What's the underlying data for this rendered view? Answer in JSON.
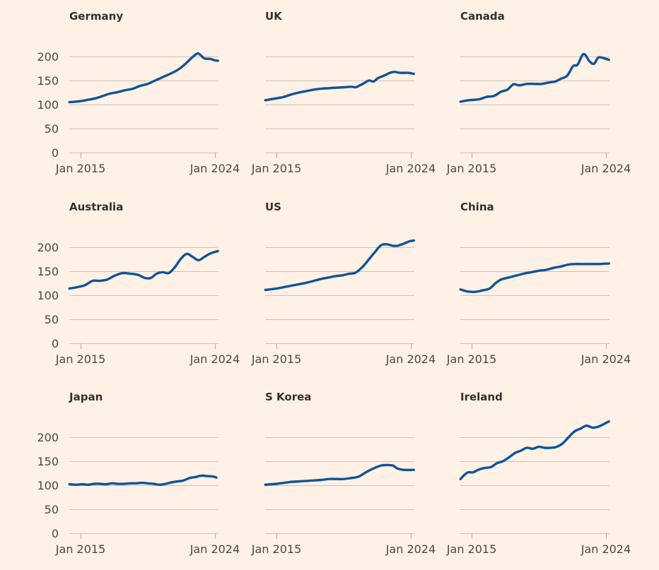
{
  "chart_data": [
    {
      "type": "line",
      "title": "Germany",
      "xlabel": "",
      "ylabel": "",
      "ylim": [
        0,
        200
      ],
      "yticks": [
        "0",
        "50",
        "100",
        "150",
        "200"
      ],
      "xticks": [
        "Jan 2015",
        "Jan 2024"
      ],
      "xrange": [
        "2014-04",
        "2024-04"
      ],
      "grid": true,
      "series": [
        {
          "name": "Germany",
          "x": [
            2014.25,
            2015.0,
            2015.5,
            2016.0,
            2016.5,
            2017.0,
            2017.5,
            2018.0,
            2018.5,
            2019.0,
            2019.5,
            2020.0,
            2020.5,
            2021.0,
            2021.5,
            2022.0,
            2022.4,
            2022.8,
            2023.0,
            2023.3,
            2023.7,
            2024.0,
            2024.2
          ],
          "values": [
            105,
            107,
            110,
            113,
            118,
            123,
            126,
            130,
            133,
            139,
            143,
            150,
            157,
            164,
            172,
            184,
            196,
            206,
            204,
            196,
            195,
            192,
            191
          ]
        }
      ]
    },
    {
      "type": "line",
      "title": "UK",
      "xlabel": "",
      "ylabel": "",
      "ylim": [
        0,
        200
      ],
      "yticks": [
        "0",
        "50",
        "100",
        "150",
        "200"
      ],
      "xticks": [
        "Jan 2015",
        "Jan 2024"
      ],
      "xrange": [
        "2014-04",
        "2024-04"
      ],
      "grid": true,
      "series": [
        {
          "name": "UK",
          "x": [
            2014.25,
            2015.0,
            2015.5,
            2016.0,
            2016.5,
            2017.0,
            2017.5,
            2018.0,
            2018.5,
            2019.0,
            2019.5,
            2020.0,
            2020.3,
            2020.6,
            2020.9,
            2021.2,
            2021.5,
            2021.8,
            2022.2,
            2022.6,
            2022.9,
            2023.3,
            2023.8,
            2024.2
          ],
          "values": [
            109,
            113,
            116,
            121,
            125,
            128,
            131,
            133,
            134,
            135,
            136,
            137,
            136,
            140,
            145,
            150,
            148,
            155,
            160,
            166,
            168,
            166,
            166,
            164
          ]
        }
      ]
    },
    {
      "type": "line",
      "title": "Canada",
      "xlabel": "",
      "ylabel": "",
      "ylim": [
        0,
        200
      ],
      "yticks": [
        "0",
        "50",
        "100",
        "150",
        "200"
      ],
      "xticks": [
        "Jan 2015",
        "Jan 2024"
      ],
      "xrange": [
        "2014-04",
        "2024-04"
      ],
      "grid": true,
      "series": [
        {
          "name": "Canada",
          "x": [
            2014.25,
            2014.8,
            2015.5,
            2016.0,
            2016.5,
            2017.0,
            2017.4,
            2017.8,
            2018.2,
            2018.7,
            2019.2,
            2019.7,
            2020.2,
            2020.6,
            2021.0,
            2021.4,
            2021.8,
            2022.1,
            2022.5,
            2022.9,
            2023.2,
            2023.5,
            2023.9,
            2024.2
          ],
          "values": [
            106,
            109,
            111,
            116,
            118,
            127,
            131,
            142,
            140,
            143,
            143,
            143,
            146,
            148,
            154,
            160,
            180,
            183,
            205,
            190,
            185,
            198,
            196,
            193
          ]
        }
      ]
    },
    {
      "type": "line",
      "title": "Australia",
      "xlabel": "",
      "ylabel": "",
      "ylim": [
        0,
        200
      ],
      "yticks": [
        "0",
        "50",
        "100",
        "150",
        "200"
      ],
      "xticks": [
        "Jan 2015",
        "Jan 2024"
      ],
      "xrange": [
        "2014-04",
        "2024-04"
      ],
      "grid": true,
      "series": [
        {
          "name": "Australia",
          "x": [
            2014.25,
            2014.8,
            2015.3,
            2015.8,
            2016.3,
            2016.8,
            2017.3,
            2017.8,
            2018.3,
            2018.8,
            2019.3,
            2019.7,
            2020.1,
            2020.5,
            2020.9,
            2021.3,
            2021.7,
            2022.1,
            2022.5,
            2022.9,
            2023.3,
            2023.7,
            2024.2
          ],
          "values": [
            114,
            117,
            121,
            130,
            130,
            133,
            141,
            146,
            145,
            143,
            136,
            136,
            145,
            148,
            146,
            158,
            175,
            186,
            180,
            173,
            180,
            187,
            192
          ]
        }
      ]
    },
    {
      "type": "line",
      "title": "US",
      "xlabel": "",
      "ylabel": "",
      "ylim": [
        0,
        200
      ],
      "yticks": [
        "0",
        "50",
        "100",
        "150",
        "200"
      ],
      "xticks": [
        "Jan 2015",
        "Jan 2024"
      ],
      "xrange": [
        "2014-04",
        "2024-04"
      ],
      "grid": true,
      "series": [
        {
          "name": "US",
          "x": [
            2014.25,
            2015.0,
            2015.5,
            2016.0,
            2016.5,
            2017.0,
            2017.5,
            2018.0,
            2018.5,
            2019.0,
            2019.5,
            2019.9,
            2020.3,
            2020.8,
            2021.2,
            2021.6,
            2022.0,
            2022.4,
            2022.8,
            2023.1,
            2023.5,
            2023.9,
            2024.2
          ],
          "values": [
            111,
            114,
            117,
            120,
            123,
            126,
            130,
            134,
            137,
            140,
            142,
            145,
            147,
            160,
            175,
            190,
            204,
            206,
            203,
            203,
            207,
            212,
            214
          ]
        }
      ]
    },
    {
      "type": "line",
      "title": "China",
      "xlabel": "",
      "ylabel": "",
      "ylim": [
        0,
        200
      ],
      "yticks": [
        "0",
        "50",
        "100",
        "150",
        "200"
      ],
      "xticks": [
        "Jan 2015",
        "Jan 2024"
      ],
      "xrange": [
        "2014-04",
        "2024-04"
      ],
      "grid": true,
      "series": [
        {
          "name": "China",
          "x": [
            2014.25,
            2014.7,
            2015.2,
            2015.7,
            2016.2,
            2016.6,
            2017.0,
            2017.5,
            2018.0,
            2018.5,
            2019.0,
            2019.5,
            2020.0,
            2020.5,
            2021.0,
            2021.5,
            2022.0,
            2022.5,
            2023.0,
            2023.5,
            2024.2
          ],
          "values": [
            112,
            108,
            107,
            110,
            114,
            125,
            133,
            137,
            141,
            145,
            148,
            151,
            153,
            157,
            160,
            164,
            165,
            165,
            165,
            165,
            166
          ]
        }
      ]
    },
    {
      "type": "line",
      "title": "Japan",
      "xlabel": "",
      "ylabel": "",
      "ylim": [
        0,
        200
      ],
      "yticks": [
        "0",
        "50",
        "100",
        "150",
        "200"
      ],
      "xticks": [
        "Jan 2015",
        "Jan 2024"
      ],
      "xrange": [
        "2014-04",
        "2024-04"
      ],
      "grid": true,
      "series": [
        {
          "name": "Japan",
          "x": [
            2014.25,
            2014.7,
            2015.1,
            2015.5,
            2015.9,
            2016.3,
            2016.7,
            2017.1,
            2017.5,
            2017.9,
            2018.3,
            2018.7,
            2019.1,
            2019.5,
            2019.9,
            2020.3,
            2020.7,
            2021.1,
            2021.5,
            2021.9,
            2022.3,
            2022.7,
            2023.1,
            2023.5,
            2023.9,
            2024.1
          ],
          "values": [
            102,
            101,
            102,
            101,
            103,
            103,
            102,
            104,
            103,
            103,
            104,
            104,
            105,
            104,
            103,
            101,
            103,
            106,
            108,
            110,
            115,
            117,
            120,
            119,
            118,
            116
          ]
        }
      ]
    },
    {
      "type": "line",
      "title": "S Korea",
      "xlabel": "",
      "ylabel": "",
      "ylim": [
        0,
        200
      ],
      "yticks": [
        "0",
        "50",
        "100",
        "150",
        "200"
      ],
      "xticks": [
        "Jan 2015",
        "Jan 2024"
      ],
      "xrange": [
        "2014-04",
        "2024-04"
      ],
      "grid": true,
      "series": [
        {
          "name": "S Korea",
          "x": [
            2014.25,
            2015.0,
            2015.5,
            2016.0,
            2016.5,
            2017.0,
            2017.5,
            2018.0,
            2018.5,
            2019.0,
            2019.5,
            2020.0,
            2020.5,
            2021.0,
            2021.5,
            2022.0,
            2022.4,
            2022.8,
            2023.1,
            2023.5,
            2024.2
          ],
          "values": [
            101,
            103,
            105,
            107,
            108,
            109,
            110,
            111,
            113,
            113,
            113,
            115,
            118,
            127,
            135,
            141,
            142,
            141,
            135,
            132,
            132
          ]
        }
      ]
    },
    {
      "type": "line",
      "title": "Ireland",
      "xlabel": "",
      "ylabel": "",
      "ylim": [
        0,
        200
      ],
      "yticks": [
        "0",
        "50",
        "100",
        "150",
        "200"
      ],
      "xticks": [
        "Jan 2015",
        "Jan 2024"
      ],
      "xrange": [
        "2014-04",
        "2024-04"
      ],
      "grid": true,
      "series": [
        {
          "name": "Ireland",
          "x": [
            2014.25,
            2014.7,
            2015.1,
            2015.5,
            2015.9,
            2016.3,
            2016.7,
            2017.1,
            2017.5,
            2017.9,
            2018.3,
            2018.7,
            2019.1,
            2019.5,
            2019.9,
            2020.3,
            2020.7,
            2021.1,
            2021.5,
            2021.9,
            2022.3,
            2022.7,
            2023.1,
            2023.5,
            2023.9,
            2024.2
          ],
          "values": [
            113,
            126,
            127,
            133,
            136,
            138,
            146,
            150,
            158,
            167,
            172,
            178,
            176,
            180,
            178,
            178,
            180,
            187,
            200,
            212,
            218,
            224,
            220,
            222,
            228,
            233
          ]
        }
      ]
    }
  ]
}
